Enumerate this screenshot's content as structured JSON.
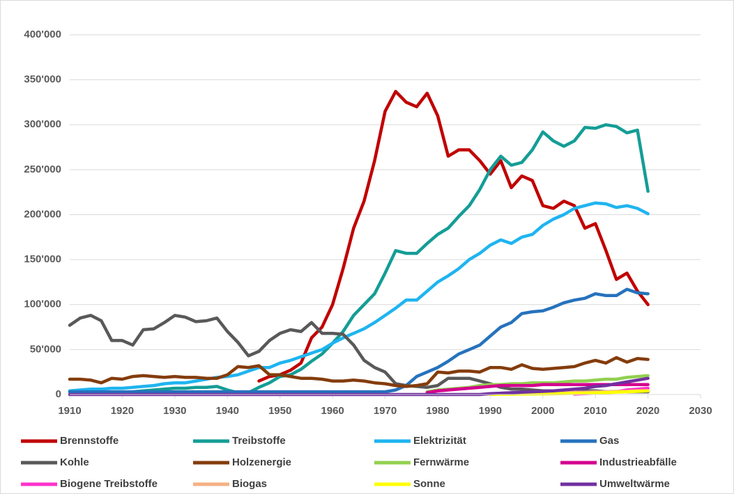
{
  "chart_data": {
    "type": "line",
    "x": [
      1910,
      1912,
      1914,
      1916,
      1918,
      1920,
      1922,
      1924,
      1926,
      1928,
      1930,
      1932,
      1934,
      1936,
      1938,
      1940,
      1942,
      1944,
      1946,
      1948,
      1950,
      1952,
      1954,
      1956,
      1958,
      1960,
      1962,
      1964,
      1966,
      1968,
      1970,
      1972,
      1974,
      1976,
      1978,
      1980,
      1982,
      1984,
      1986,
      1988,
      1990,
      1992,
      1994,
      1996,
      1998,
      2000,
      2002,
      2004,
      2006,
      2008,
      2010,
      2012,
      2014,
      2016,
      2018,
      2020
    ],
    "xlim": [
      1910,
      2030
    ],
    "xticks": [
      1910,
      1920,
      1930,
      1940,
      1950,
      1960,
      1970,
      1980,
      1990,
      2000,
      2010,
      2020,
      2030
    ],
    "ylim": [
      0,
      400000
    ],
    "yticks": [
      {
        "value": 0,
        "label": "0"
      },
      {
        "value": 50000,
        "label": "50'000"
      },
      {
        "value": 100000,
        "label": "100'000"
      },
      {
        "value": 150000,
        "label": "150'000"
      },
      {
        "value": 200000,
        "label": "200'000"
      },
      {
        "value": 250000,
        "label": "250'000"
      },
      {
        "value": 300000,
        "label": "300'000"
      },
      {
        "value": 350000,
        "label": "350'000"
      },
      {
        "value": 400000,
        "label": "400'000"
      }
    ],
    "grid": true,
    "legend": "bottom",
    "series": [
      {
        "name": "Brennstoffe",
        "color": "#c00000",
        "values": [
          null,
          null,
          null,
          null,
          null,
          null,
          null,
          null,
          null,
          null,
          null,
          null,
          null,
          null,
          null,
          null,
          null,
          null,
          15000,
          20000,
          22000,
          27000,
          35000,
          63000,
          75000,
          100000,
          140000,
          185000,
          215000,
          260000,
          315000,
          337000,
          325000,
          320000,
          335000,
          310000,
          265000,
          272000,
          272000,
          260000,
          245000,
          260000,
          230000,
          243000,
          238000,
          210000,
          207000,
          215000,
          210000,
          185000,
          190000,
          160000,
          128000,
          135000,
          115000,
          100000
        ]
      },
      {
        "name": "Treibstoffe",
        "color": "#149d96",
        "values": [
          3000,
          3000,
          3000,
          2000,
          1000,
          2000,
          3000,
          4000,
          5000,
          6000,
          7000,
          7000,
          8000,
          8000,
          9000,
          5000,
          2000,
          2000,
          8000,
          13000,
          20000,
          22000,
          28000,
          37000,
          45000,
          57000,
          70000,
          88000,
          100000,
          112000,
          135000,
          160000,
          157000,
          157000,
          168000,
          178000,
          185000,
          198000,
          210000,
          228000,
          250000,
          265000,
          255000,
          258000,
          272000,
          292000,
          282000,
          276000,
          282000,
          297000,
          296000,
          300000,
          298000,
          291000,
          294000,
          226000
        ]
      },
      {
        "name": "Elektrizität",
        "color": "#1fb4f0",
        "values": [
          4000,
          5000,
          6000,
          6000,
          7000,
          7000,
          8000,
          9000,
          10000,
          12000,
          13000,
          13000,
          15000,
          17000,
          19000,
          20000,
          22000,
          26000,
          30000,
          30000,
          35000,
          38000,
          42000,
          46000,
          50000,
          57000,
          63000,
          68000,
          73000,
          80000,
          88000,
          96000,
          105000,
          105000,
          115000,
          125000,
          132000,
          140000,
          150000,
          157000,
          166000,
          172000,
          168000,
          175000,
          178000,
          188000,
          195000,
          200000,
          207000,
          210000,
          213000,
          212000,
          208000,
          210000,
          207000,
          201000
        ]
      },
      {
        "name": "Gas",
        "color": "#2672bd",
        "values": [
          3000,
          3000,
          3000,
          3000,
          3000,
          3000,
          3000,
          3000,
          3000,
          3000,
          3000,
          3000,
          3000,
          3000,
          3000,
          3000,
          3000,
          3000,
          3000,
          3000,
          3000,
          3000,
          3000,
          3000,
          3000,
          3000,
          3000,
          3000,
          3000,
          3000,
          3000,
          5000,
          10000,
          20000,
          25000,
          30000,
          37000,
          45000,
          50000,
          55000,
          65000,
          75000,
          80000,
          90000,
          92000,
          93000,
          97000,
          102000,
          105000,
          107000,
          112000,
          110000,
          110000,
          117000,
          113000,
          112000
        ]
      },
      {
        "name": "Kohle",
        "color": "#595959",
        "values": [
          77000,
          85000,
          88000,
          82000,
          60000,
          60000,
          55000,
          72000,
          73000,
          80000,
          88000,
          86000,
          81000,
          82000,
          85000,
          70000,
          58000,
          43000,
          48000,
          60000,
          68000,
          72000,
          70000,
          80000,
          68000,
          68000,
          67000,
          55000,
          38000,
          30000,
          25000,
          12000,
          10000,
          9000,
          8000,
          10000,
          18000,
          18000,
          18000,
          15000,
          12000,
          8000,
          6000,
          6000,
          5000,
          4000,
          4000,
          4000,
          4000,
          4000,
          4000,
          3000,
          3000,
          3000,
          3000,
          3000
        ]
      },
      {
        "name": "Holzenergie",
        "color": "#843c0c",
        "values": [
          17000,
          17000,
          16000,
          13000,
          18000,
          17000,
          20000,
          21000,
          20000,
          19000,
          20000,
          19000,
          19000,
          18000,
          18000,
          22000,
          31000,
          30000,
          32000,
          22000,
          22000,
          20000,
          18000,
          18000,
          17000,
          15000,
          15000,
          16000,
          15000,
          13000,
          12000,
          10000,
          9000,
          10000,
          12000,
          25000,
          24000,
          26000,
          26000,
          25000,
          30000,
          30000,
          28000,
          33000,
          29000,
          28000,
          29000,
          30000,
          31000,
          35000,
          38000,
          35000,
          41000,
          36000,
          40000,
          39000
        ]
      },
      {
        "name": "Fernwärme",
        "color": "#92d050",
        "values": [
          null,
          null,
          null,
          null,
          null,
          null,
          null,
          null,
          null,
          null,
          null,
          null,
          null,
          null,
          null,
          null,
          null,
          null,
          null,
          null,
          null,
          null,
          null,
          null,
          null,
          null,
          null,
          null,
          null,
          null,
          null,
          null,
          null,
          null,
          3000,
          5000,
          6000,
          7000,
          8000,
          10000,
          11000,
          11000,
          12000,
          12000,
          13000,
          13000,
          13000,
          14000,
          15000,
          15000,
          16000,
          17000,
          17000,
          19000,
          20000,
          21000
        ]
      },
      {
        "name": "Industrieabfälle",
        "color": "#d4008f",
        "values": [
          null,
          null,
          null,
          null,
          null,
          null,
          null,
          null,
          null,
          null,
          null,
          null,
          null,
          null,
          null,
          null,
          null,
          null,
          null,
          null,
          null,
          null,
          null,
          null,
          null,
          null,
          null,
          null,
          null,
          null,
          null,
          null,
          null,
          null,
          2000,
          4000,
          5000,
          6000,
          7000,
          8000,
          9000,
          10000,
          10000,
          10000,
          10000,
          11000,
          11000,
          11000,
          11000,
          11000,
          11000,
          11000,
          11000,
          11000,
          11000,
          11000
        ]
      },
      {
        "name": "Biogene Treibstoffe",
        "color": "#ff33cc",
        "values": [
          null,
          null,
          null,
          null,
          null,
          null,
          null,
          null,
          null,
          null,
          null,
          null,
          null,
          null,
          null,
          null,
          null,
          null,
          null,
          null,
          null,
          null,
          null,
          null,
          null,
          null,
          null,
          null,
          null,
          null,
          null,
          null,
          null,
          null,
          null,
          null,
          null,
          null,
          null,
          null,
          null,
          null,
          null,
          null,
          null,
          null,
          null,
          null,
          500,
          1000,
          1500,
          2000,
          3000,
          5000,
          6000,
          7000
        ]
      },
      {
        "name": "Biogas",
        "color": "#f4b183",
        "values": [
          null,
          null,
          null,
          null,
          null,
          null,
          null,
          null,
          null,
          null,
          null,
          null,
          null,
          null,
          null,
          null,
          null,
          null,
          null,
          null,
          null,
          null,
          null,
          null,
          null,
          null,
          null,
          null,
          null,
          null,
          null,
          null,
          null,
          null,
          null,
          null,
          null,
          null,
          null,
          null,
          1000,
          1000,
          1000,
          1500,
          1500,
          2000,
          2000,
          2000,
          2500,
          2500,
          3000,
          3000,
          3500,
          3500,
          4000,
          4000
        ]
      },
      {
        "name": "Sonne",
        "color": "#ffff00",
        "values": [
          null,
          null,
          null,
          null,
          null,
          null,
          null,
          null,
          null,
          null,
          null,
          null,
          null,
          null,
          null,
          null,
          null,
          null,
          null,
          null,
          null,
          null,
          null,
          null,
          null,
          null,
          null,
          null,
          null,
          null,
          null,
          null,
          null,
          null,
          null,
          null,
          null,
          null,
          null,
          null,
          100,
          200,
          300,
          400,
          500,
          600,
          800,
          1000,
          1200,
          1500,
          1800,
          2200,
          2600,
          3000,
          3500,
          4000
        ]
      },
      {
        "name": "Umweltwärme",
        "color": "#7030a0",
        "values": [
          0,
          0,
          0,
          0,
          0,
          0,
          0,
          0,
          0,
          0,
          0,
          0,
          0,
          0,
          0,
          0,
          0,
          0,
          0,
          0,
          0,
          0,
          0,
          0,
          0,
          0,
          0,
          0,
          0,
          0,
          0,
          0,
          0,
          0,
          0,
          0,
          0,
          0,
          0,
          0,
          1000,
          1500,
          2000,
          2500,
          3000,
          3500,
          4000,
          5000,
          6000,
          7000,
          9000,
          10000,
          12000,
          14000,
          16000,
          18000
        ]
      }
    ]
  }
}
